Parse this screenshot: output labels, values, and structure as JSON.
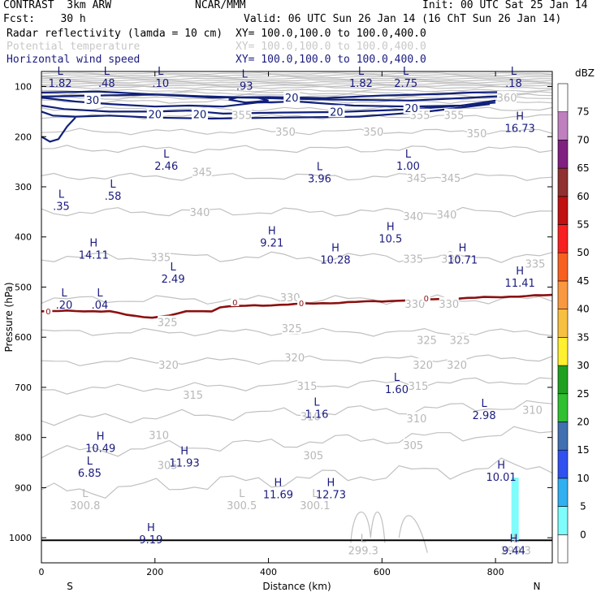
{
  "header": {
    "model": "CONTRAST  3km ARW",
    "org": "NCAR/MMM",
    "init": "Init: 00 UTC Sat 25 Jan 14",
    "fcst": "Fcst:    30 h",
    "valid": "Valid: 06 UTC Sun 26 Jan 14 (16 ChT Sun 26 Jan 14)",
    "field1_name": "Radar reflectivity (lamda = 10 cm)",
    "field1_xy": "XY= 100.0,100.0 to 100.0,400.0",
    "field2_name": "Potential temperature",
    "field2_xy": "XY= 100.0,100.0 to 100.0,400.0",
    "field3_name": "Horizontal wind speed",
    "field3_xy": "XY= 100.0,100.0 to 100.0,400.0"
  },
  "colors": {
    "reflectivity_contour": "#8b1010",
    "theta_contour": "#c0c0c0",
    "wind_contour": "#10207a",
    "label_navy": "#1a1a80"
  },
  "chart_data": {
    "type": "cross-section",
    "xlabel": "Distance (km)",
    "ylabel": "Pressure (hPa)",
    "xlim": [
      0,
      900
    ],
    "ylim": [
      1050,
      70
    ],
    "x_ticks": [
      "0",
      "200",
      "400",
      "600",
      "800"
    ],
    "y_ticks": [
      "100",
      "200",
      "300",
      "400",
      "500",
      "600",
      "700",
      "800",
      "900",
      "1000"
    ],
    "x_end_labels": {
      "left": "S",
      "right": "N"
    },
    "colorbar": {
      "units": "dBZ",
      "levels": [
        "0",
        "5",
        "10",
        "15",
        "20",
        "25",
        "30",
        "35",
        "40",
        "45",
        "50",
        "55",
        "60",
        "65",
        "70",
        "75"
      ],
      "colors": [
        "#ffffff",
        "#7ffcfc",
        "#30b0f0",
        "#3050f0",
        "#4070b0",
        "#30c030",
        "#20a020",
        "#fff030",
        "#f8c040",
        "#f89840",
        "#f86020",
        "#f82020",
        "#c01010",
        "#903030",
        "#802080",
        "#c080c0",
        "#ffffff"
      ]
    },
    "theta_contour_labels": [
      {
        "text": "360",
        "x": 820,
        "p": 122
      },
      {
        "text": "355",
        "x": 667,
        "p": 157
      },
      {
        "text": "355",
        "x": 727,
        "p": 157
      },
      {
        "text": "355",
        "x": 353,
        "p": 157
      },
      {
        "text": "350",
        "x": 430,
        "p": 190
      },
      {
        "text": "350",
        "x": 585,
        "p": 190
      },
      {
        "text": "350",
        "x": 767,
        "p": 193
      },
      {
        "text": "345",
        "x": 283,
        "p": 270
      },
      {
        "text": "345",
        "x": 661,
        "p": 282
      },
      {
        "text": "345",
        "x": 721,
        "p": 282
      },
      {
        "text": "340",
        "x": 279,
        "p": 350
      },
      {
        "text": "340",
        "x": 655,
        "p": 358
      },
      {
        "text": "340",
        "x": 714,
        "p": 355
      },
      {
        "text": "335",
        "x": 210,
        "p": 440
      },
      {
        "text": "335",
        "x": 655,
        "p": 443
      },
      {
        "text": "335",
        "x": 722,
        "p": 443
      },
      {
        "text": "335",
        "x": 870,
        "p": 453
      },
      {
        "text": "330",
        "x": 438,
        "p": 520
      },
      {
        "text": "330",
        "x": 658,
        "p": 533
      },
      {
        "text": "330",
        "x": 718,
        "p": 533
      },
      {
        "text": "325",
        "x": 222,
        "p": 570
      },
      {
        "text": "325",
        "x": 441,
        "p": 582
      },
      {
        "text": "325",
        "x": 679,
        "p": 605
      },
      {
        "text": "325",
        "x": 737,
        "p": 605
      },
      {
        "text": "320",
        "x": 224,
        "p": 655
      },
      {
        "text": "320",
        "x": 446,
        "p": 640
      },
      {
        "text": "320",
        "x": 672,
        "p": 655
      },
      {
        "text": "320",
        "x": 732,
        "p": 655
      },
      {
        "text": "315",
        "x": 267,
        "p": 715
      },
      {
        "text": "315",
        "x": 468,
        "p": 697
      },
      {
        "text": "315",
        "x": 664,
        "p": 697
      },
      {
        "text": "310",
        "x": 207,
        "p": 795
      },
      {
        "text": "310",
        "x": 474,
        "p": 758
      },
      {
        "text": "310",
        "x": 661,
        "p": 762
      },
      {
        "text": "310",
        "x": 865,
        "p": 745
      },
      {
        "text": "305",
        "x": 222,
        "p": 855
      },
      {
        "text": "305",
        "x": 479,
        "p": 835
      },
      {
        "text": "305",
        "x": 655,
        "p": 815
      }
    ],
    "wind_contour_labels": [
      {
        "text": "30",
        "x": 90,
        "p": 127
      },
      {
        "text": "20",
        "x": 200,
        "p": 155
      },
      {
        "text": "20",
        "x": 279,
        "p": 155
      },
      {
        "text": "20",
        "x": 441,
        "p": 122
      },
      {
        "text": "20",
        "x": 520,
        "p": 150
      },
      {
        "text": "20",
        "x": 652,
        "p": 143
      }
    ],
    "reflectivity_contour_labels": [
      {
        "text": "0",
        "x": 12,
        "p": 548
      },
      {
        "text": "0",
        "x": 341,
        "p": 530
      },
      {
        "text": "0",
        "x": 458,
        "p": 532
      },
      {
        "text": "0",
        "x": 678,
        "p": 522
      }
    ],
    "hl_markers": [
      {
        "kind": "L",
        "value": "1.82",
        "x": 33,
        "p": 80,
        "series": "wind"
      },
      {
        "kind": "L",
        "value": ".48",
        "x": 115,
        "p": 80,
        "series": "wind"
      },
      {
        "kind": "L",
        "value": ".10",
        "x": 210,
        "p": 80,
        "series": "wind"
      },
      {
        "kind": "L",
        "value": ".93",
        "x": 358,
        "p": 85,
        "series": "wind"
      },
      {
        "kind": "L",
        "value": "1.82",
        "x": 563,
        "p": 80,
        "series": "wind"
      },
      {
        "kind": "L",
        "value": "2.75",
        "x": 642,
        "p": 80,
        "series": "wind"
      },
      {
        "kind": "L",
        "value": ".18",
        "x": 832,
        "p": 80,
        "series": "wind"
      },
      {
        "kind": "H",
        "value": "16.73",
        "x": 843,
        "p": 170,
        "series": "wind"
      },
      {
        "kind": "L",
        "value": "2.46",
        "x": 220,
        "p": 245,
        "series": "wind"
      },
      {
        "kind": "L",
        "value": "3.96",
        "x": 490,
        "p": 270,
        "series": "wind"
      },
      {
        "kind": "L",
        "value": "1.00",
        "x": 646,
        "p": 245,
        "series": "wind"
      },
      {
        "kind": "L",
        "value": ".58",
        "x": 126,
        "p": 305,
        "series": "wind"
      },
      {
        "kind": "L",
        "value": ".35",
        "x": 35,
        "p": 325,
        "series": "wind"
      },
      {
        "kind": "H",
        "value": "9.21",
        "x": 406,
        "p": 398,
        "series": "wind"
      },
      {
        "kind": "H",
        "value": "10.5",
        "x": 615,
        "p": 390,
        "series": "wind"
      },
      {
        "kind": "H",
        "value": "14.11",
        "x": 92,
        "p": 422,
        "series": "wind"
      },
      {
        "kind": "H",
        "value": "10.28",
        "x": 518,
        "p": 432,
        "series": "wind"
      },
      {
        "kind": "H",
        "value": "10.71",
        "x": 742,
        "p": 432,
        "series": "wind"
      },
      {
        "kind": "H",
        "value": "11.41",
        "x": 843,
        "p": 478,
        "series": "wind"
      },
      {
        "kind": "L",
        "value": "2.49",
        "x": 232,
        "p": 470,
        "series": "wind"
      },
      {
        "kind": "L",
        "value": ".20",
        "x": 40,
        "p": 522,
        "series": "wind"
      },
      {
        "kind": "L",
        "value": ".04",
        "x": 103,
        "p": 522,
        "series": "wind"
      },
      {
        "kind": "L",
        "value": "1.60",
        "x": 626,
        "p": 690,
        "series": "wind"
      },
      {
        "kind": "L",
        "value": "1.16",
        "x": 485,
        "p": 740,
        "series": "wind"
      },
      {
        "kind": "L",
        "value": "2.98",
        "x": 780,
        "p": 742,
        "series": "wind"
      },
      {
        "kind": "H",
        "value": "10.49",
        "x": 104,
        "p": 808,
        "series": "wind"
      },
      {
        "kind": "H",
        "value": "11.93",
        "x": 252,
        "p": 837,
        "series": "wind"
      },
      {
        "kind": "L",
        "value": "6.85",
        "x": 85,
        "p": 857,
        "series": "wind"
      },
      {
        "kind": "H",
        "value": "10.01",
        "x": 810,
        "p": 865,
        "series": "wind"
      },
      {
        "kind": "H",
        "value": "11.69",
        "x": 417,
        "p": 900,
        "series": "wind"
      },
      {
        "kind": "H",
        "value": "12.73",
        "x": 510,
        "p": 900,
        "series": "wind"
      },
      {
        "kind": "L",
        "value": "300.8",
        "x": 77,
        "p": 922,
        "series": "theta"
      },
      {
        "kind": "L",
        "value": "300.5",
        "x": 353,
        "p": 922,
        "series": "theta"
      },
      {
        "kind": "L",
        "value": "300.1",
        "x": 482,
        "p": 922,
        "series": "theta"
      },
      {
        "kind": "H",
        "value": "9.19",
        "x": 193,
        "p": 990,
        "series": "wind"
      },
      {
        "kind": "L",
        "value": "299.3",
        "x": 567,
        "p": 1012,
        "series": "theta"
      },
      {
        "kind": "L",
        "value": "299.3",
        "x": 836,
        "p": 1012,
        "series": "theta"
      },
      {
        "kind": "H",
        "value": "9.44",
        "x": 832,
        "p": 1012,
        "series": "wind"
      }
    ]
  }
}
